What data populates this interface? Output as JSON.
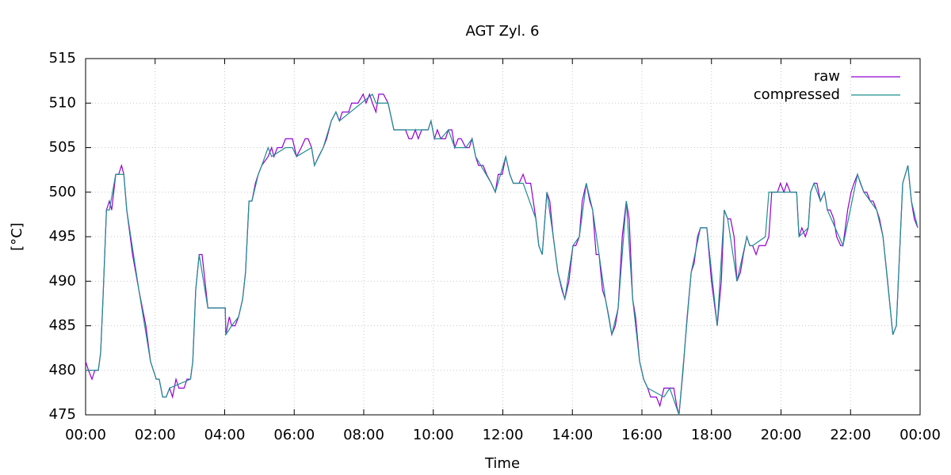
{
  "chart_data": {
    "type": "line",
    "title": "AGT Zyl. 6",
    "x_label": "Time",
    "y_label": "[°C]",
    "xlim": [
      0,
      1440
    ],
    "xticks": [
      {
        "value": 0,
        "label": "00:00"
      },
      {
        "value": 120,
        "label": "02:00"
      },
      {
        "value": 240,
        "label": "04:00"
      },
      {
        "value": 360,
        "label": "06:00"
      },
      {
        "value": 480,
        "label": "08:00"
      },
      {
        "value": 600,
        "label": "10:00"
      },
      {
        "value": 720,
        "label": "12:00"
      },
      {
        "value": 840,
        "label": "14:00"
      },
      {
        "value": 960,
        "label": "16:00"
      },
      {
        "value": 1080,
        "label": "18:00"
      },
      {
        "value": 1200,
        "label": "20:00"
      },
      {
        "value": 1320,
        "label": "22:00"
      },
      {
        "value": 1440,
        "label": "00:00"
      }
    ],
    "ylim": [
      475,
      515
    ],
    "yticks": [
      475,
      480,
      485,
      490,
      495,
      500,
      505,
      510,
      515
    ],
    "grid": true,
    "legend": "top-right",
    "series": [
      {
        "name": "raw",
        "color": "#9400d3",
        "x": [
          0,
          5,
          11,
          16,
          22,
          26,
          30,
          36,
          41,
          45,
          52,
          57,
          62,
          66,
          71,
          81,
          92,
          104,
          112,
          122,
          127,
          133,
          139,
          145,
          150,
          156,
          161,
          170,
          175,
          181,
          185,
          190,
          196,
          201,
          206,
          211,
          241,
          242,
          248,
          252,
          258,
          264,
          271,
          276,
          282,
          287,
          293,
          298,
          304,
          315,
          321,
          325,
          331,
          339,
          345,
          357,
          364,
          372,
          379,
          384,
          390,
          395,
          402,
          410,
          416,
          424,
          432,
          438,
          443,
          454,
          459,
          470,
          479,
          484,
          490,
          495,
          501,
          506,
          514,
          522,
          532,
          552,
          558,
          563,
          569,
          574,
          580,
          591,
          596,
          602,
          607,
          613,
          621,
          626,
          632,
          637,
          643,
          648,
          656,
          662,
          667,
          673,
          678,
          686,
          692,
          700,
          707,
          712,
          719,
          725,
          732,
          738,
          748,
          755,
          760,
          768,
          777,
          782,
          788,
          796,
          801,
          807,
          815,
          822,
          827,
          834,
          841,
          846,
          852,
          857,
          864,
          870,
          875,
          881,
          886,
          892,
          897,
          903,
          908,
          914,
          919,
          926,
          933,
          938,
          944,
          949,
          956,
          963,
          970,
          975,
          985,
          991,
          998,
          1008,
          1015,
          1020,
          1024,
          1031,
          1038,
          1045,
          1050,
          1056,
          1061,
          1072,
          1080,
          1090,
          1097,
          1102,
          1108,
          1113,
          1119,
          1124,
          1130,
          1135,
          1141,
          1146,
          1151,
          1157,
          1162,
          1173,
          1179,
          1184,
          1194,
          1199,
          1205,
          1210,
          1216,
          1227,
          1231,
          1236,
          1242,
          1247,
          1251,
          1257,
          1262,
          1268,
          1275,
          1280,
          1285,
          1291,
          1296,
          1303,
          1307,
          1315,
          1321,
          1326,
          1332,
          1337,
          1343,
          1348,
          1354,
          1359,
          1365,
          1370,
          1376,
          1384,
          1393,
          1399,
          1410,
          1419,
          1425,
          1430,
          1436
        ],
        "values": [
          481,
          480,
          479,
          480,
          480,
          482,
          488,
          498,
          499,
          498,
          502,
          502,
          503,
          502,
          498,
          493,
          489,
          485,
          481,
          479,
          479,
          477,
          477,
          478,
          477,
          479,
          478,
          478,
          479,
          479,
          481,
          489,
          493,
          493,
          490,
          487,
          487,
          484,
          486,
          485,
          485,
          486,
          488,
          491,
          499,
          499,
          501,
          502,
          503,
          504,
          505,
          504,
          505,
          505,
          506,
          506,
          504,
          505,
          506,
          506,
          505,
          503,
          504,
          505,
          506,
          508,
          509,
          508,
          509,
          509,
          510,
          510,
          511,
          510,
          511,
          510,
          509,
          511,
          511,
          510,
          507,
          507,
          506,
          506,
          507,
          506,
          507,
          507,
          508,
          506,
          507,
          506,
          506,
          507,
          507,
          505,
          506,
          506,
          505,
          505,
          506,
          504,
          503,
          503,
          502,
          501,
          500,
          502,
          502,
          504,
          502,
          501,
          501,
          502,
          501,
          501,
          497,
          494,
          493,
          500,
          499,
          495,
          491,
          489,
          488,
          490,
          494,
          494,
          495,
          499,
          501,
          499,
          498,
          493,
          493,
          489,
          488,
          486,
          484,
          485,
          487,
          495,
          499,
          497,
          488,
          486,
          481,
          479,
          478,
          477,
          477,
          476,
          478,
          478,
          478,
          476,
          475,
          480,
          486,
          491,
          492,
          495,
          496,
          496,
          490,
          485,
          490,
          498,
          497,
          497,
          495,
          490,
          491,
          493,
          495,
          494,
          494,
          493,
          494,
          494,
          495,
          500,
          500,
          501,
          500,
          501,
          500,
          500,
          495,
          496,
          495,
          496,
          500,
          501,
          501,
          499,
          500,
          498,
          498,
          497,
          495,
          494,
          494,
          498,
          500,
          501,
          502,
          501,
          500,
          500,
          499,
          499,
          498,
          497,
          495,
          490,
          484,
          485,
          501,
          503,
          499,
          497,
          496
        ]
      },
      {
        "name": "compressed",
        "color": "#1f8f8f",
        "x": [
          0,
          22,
          26,
          30,
          36,
          41,
          52,
          66,
          71,
          92,
          112,
          122,
          127,
          133,
          139,
          145,
          181,
          185,
          190,
          196,
          211,
          241,
          242,
          252,
          264,
          271,
          276,
          282,
          287,
          298,
          304,
          315,
          321,
          345,
          357,
          364,
          390,
          395,
          410,
          424,
          432,
          438,
          495,
          501,
          522,
          532,
          591,
          596,
          602,
          613,
          626,
          637,
          656,
          667,
          673,
          700,
          707,
          725,
          732,
          738,
          755,
          777,
          782,
          788,
          796,
          807,
          815,
          827,
          841,
          852,
          864,
          875,
          886,
          897,
          908,
          919,
          933,
          944,
          956,
          963,
          970,
          998,
          1008,
          1024,
          1045,
          1061,
          1072,
          1090,
          1102,
          1108,
          1124,
          1141,
          1146,
          1151,
          1173,
          1179,
          1227,
          1231,
          1247,
          1251,
          1257,
          1268,
          1275,
          1280,
          1307,
          1332,
          1343,
          1365,
          1376,
          1393,
          1399,
          1410,
          1419,
          1425,
          1436
        ],
        "values": [
          480,
          480,
          482,
          488,
          498,
          498,
          502,
          502,
          498,
          489,
          481,
          479,
          479,
          477,
          477,
          478,
          479,
          481,
          489,
          493,
          487,
          487,
          484,
          485,
          486,
          488,
          491,
          499,
          499,
          502,
          503,
          505,
          504,
          505,
          505,
          504,
          505,
          503,
          505,
          508,
          509,
          508,
          511,
          510,
          510,
          507,
          507,
          508,
          506,
          506,
          507,
          505,
          505,
          506,
          504,
          501,
          500,
          504,
          502,
          501,
          501,
          497,
          494,
          493,
          500,
          495,
          491,
          488,
          494,
          495,
          501,
          498,
          493,
          488,
          484,
          487,
          499,
          488,
          481,
          479,
          478,
          477,
          478,
          475,
          491,
          496,
          496,
          485,
          498,
          497,
          490,
          495,
          494,
          494,
          495,
          500,
          500,
          495,
          496,
          500,
          501,
          499,
          500,
          498,
          494,
          502,
          500,
          498,
          495,
          484,
          485,
          501,
          503,
          499,
          496
        ]
      }
    ]
  }
}
